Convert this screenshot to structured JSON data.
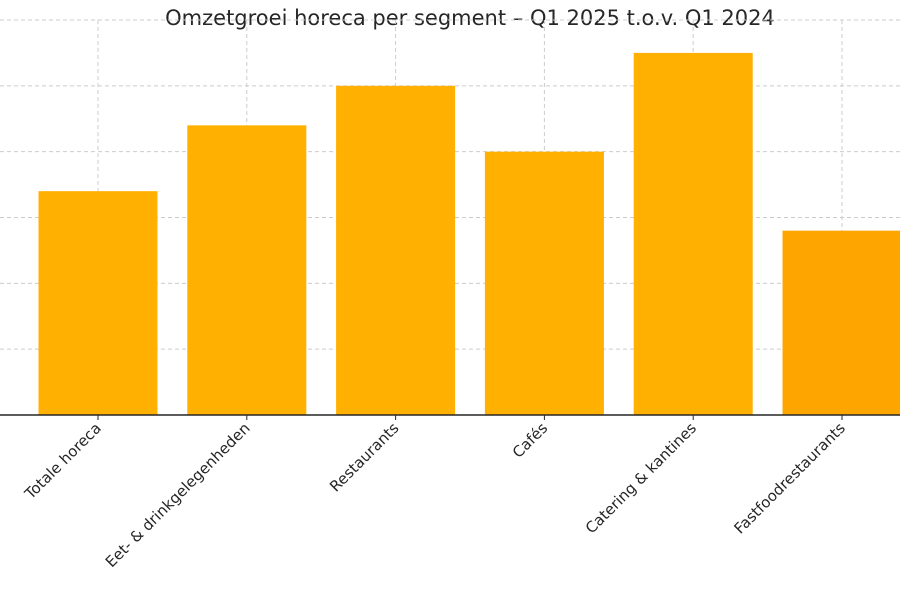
{
  "chart_data": {
    "type": "bar",
    "title": "Omzetgroei horeca per segment – Q1 2025 t.o.v. Q1 2024",
    "xlabel": "",
    "ylabel": "",
    "categories": [
      "Totale horeca",
      "Eet- & drinkgelegenheden",
      "Restaurants",
      "Cafés",
      "Catering & kantines",
      "Fastfoodrestaurants"
    ],
    "series": [
      {
        "values": [
          3.4,
          4.4,
          5.0,
          4.0,
          5.5,
          2.8
        ]
      }
    ],
    "ylim": [
      0,
      6
    ],
    "grid": true,
    "legend": "none",
    "colors": {
      "bar": "#FFB000",
      "bar_last": "#FFA500",
      "grid": "#cccccc",
      "axis": "#262626"
    }
  }
}
